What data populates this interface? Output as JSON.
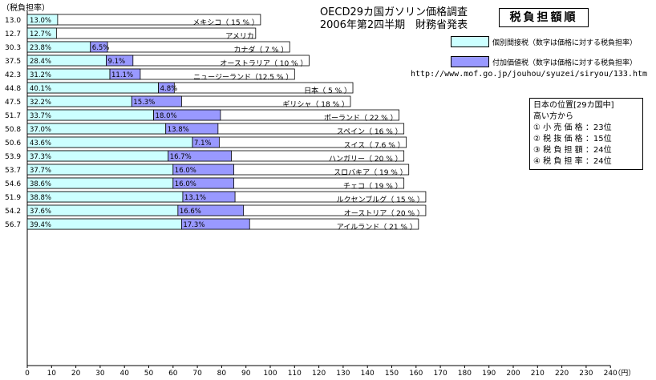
{
  "title_line1": "OECD29カ国ガソリン価格調査",
  "title_line2": "2006年第2四半期　財務省発表",
  "y_axis_label": "（税負担率）",
  "box_title": "税負担額順",
  "legend": {
    "indirect_label": "個別間接税（数字は価格に対する税負担率）",
    "vat_label": "付加価値税（数字は価格に対する税負担率）"
  },
  "url": "http://www.mof.go.jp/jouhou/syuzei/siryou/133.htm",
  "rank_box": {
    "title": "日本の位置[29カ国中]",
    "subtitle": "高い方から",
    "items": [
      "① 小 売 価 格 ：23位",
      "② 税 抜 価 格 ：15位",
      "③ 税 負 担 額 ：24位",
      "④ 税 負 担 率 ：24位"
    ]
  },
  "colors": {
    "indirect": "#ccffff",
    "vat": "#9999ff",
    "price": "#ffffff",
    "border": "#000000"
  },
  "chart_data": {
    "type": "bar",
    "orientation": "horizontal",
    "stacked": true,
    "x_unit": "（円）",
    "xlim": [
      0,
      240
    ],
    "x_ticks": [
      0,
      10,
      20,
      30,
      40,
      50,
      60,
      70,
      80,
      90,
      100,
      110,
      120,
      130,
      140,
      150,
      160,
      170,
      180,
      190,
      200,
      210,
      220,
      230,
      240
    ],
    "rows": [
      {
        "country": "メキシコ（ 15 % ）",
        "tax_rate": "13.0",
        "indirect_pct": "13.0%",
        "vat_pct": "",
        "indirect": 12.5,
        "vat": 0,
        "price": 96
      },
      {
        "country": "アメリカ",
        "tax_rate": "12.7",
        "indirect_pct": "12.7%",
        "vat_pct": "",
        "indirect": 12,
        "vat": 0,
        "price": 94
      },
      {
        "country": "カナダ（ 7 % ）",
        "tax_rate": "30.3",
        "indirect_pct": "23.8%",
        "vat_pct": "6.5%",
        "indirect": 26,
        "vat": 7,
        "price": 108
      },
      {
        "country": "オーストラリア（ 10 % ）",
        "tax_rate": "37.5",
        "indirect_pct": "28.4%",
        "vat_pct": "9.1%",
        "indirect": 32.5,
        "vat": 11,
        "price": 116
      },
      {
        "country": "ニュージーランド（12.5 % ）",
        "tax_rate": "42.3",
        "indirect_pct": "31.2%",
        "vat_pct": "11.1%",
        "indirect": 34,
        "vat": 12.5,
        "price": 110
      },
      {
        "country": "日本（ 5 % ）",
        "tax_rate": "44.8",
        "indirect_pct": "40.1%",
        "vat_pct": "4.8%",
        "indirect": 54,
        "vat": 6.5,
        "price": 134
      },
      {
        "country": "ギリシャ（ 18 % ）",
        "tax_rate": "47.5",
        "indirect_pct": "32.2%",
        "vat_pct": "15.3%",
        "indirect": 43,
        "vat": 20.5,
        "price": 133
      },
      {
        "country": "ポーランド（ 22 % ）",
        "tax_rate": "51.7",
        "indirect_pct": "33.7%",
        "vat_pct": "18.0%",
        "indirect": 52,
        "vat": 27.5,
        "price": 153
      },
      {
        "country": "スペイン（ 16 % ）",
        "tax_rate": "50.8",
        "indirect_pct": "37.0%",
        "vat_pct": "13.8%",
        "indirect": 57,
        "vat": 21.5,
        "price": 155
      },
      {
        "country": "スイス（ 7.6 % ）",
        "tax_rate": "50.6",
        "indirect_pct": "43.6%",
        "vat_pct": "7.1%",
        "indirect": 68,
        "vat": 11,
        "price": 156
      },
      {
        "country": "ハンガリー（ 20 % ）",
        "tax_rate": "53.9",
        "indirect_pct": "37.3%",
        "vat_pct": "16.7%",
        "indirect": 58,
        "vat": 26,
        "price": 155
      },
      {
        "country": "スロバキア（ 19 % ）",
        "tax_rate": "53.7",
        "indirect_pct": "37.7%",
        "vat_pct": "16.0%",
        "indirect": 60,
        "vat": 25,
        "price": 157
      },
      {
        "country": "チェコ（ 19 % ）",
        "tax_rate": "54.6",
        "indirect_pct": "38.6%",
        "vat_pct": "16.0%",
        "indirect": 60,
        "vat": 25,
        "price": 155
      },
      {
        "country": "ルクセンブルグ（ 15 % ）",
        "tax_rate": "51.9",
        "indirect_pct": "38.8%",
        "vat_pct": "13.1%",
        "indirect": 64,
        "vat": 21.5,
        "price": 164
      },
      {
        "country": "オーストリア（ 20 % ）",
        "tax_rate": "54.2",
        "indirect_pct": "37.6%",
        "vat_pct": "16.6%",
        "indirect": 62,
        "vat": 27,
        "price": 164
      },
      {
        "country": "アイルランド（ 21 % ）",
        "tax_rate": "56.7",
        "indirect_pct": "39.4%",
        "vat_pct": "17.3%",
        "indirect": 63.5,
        "vat": 28,
        "price": 161
      }
    ]
  }
}
